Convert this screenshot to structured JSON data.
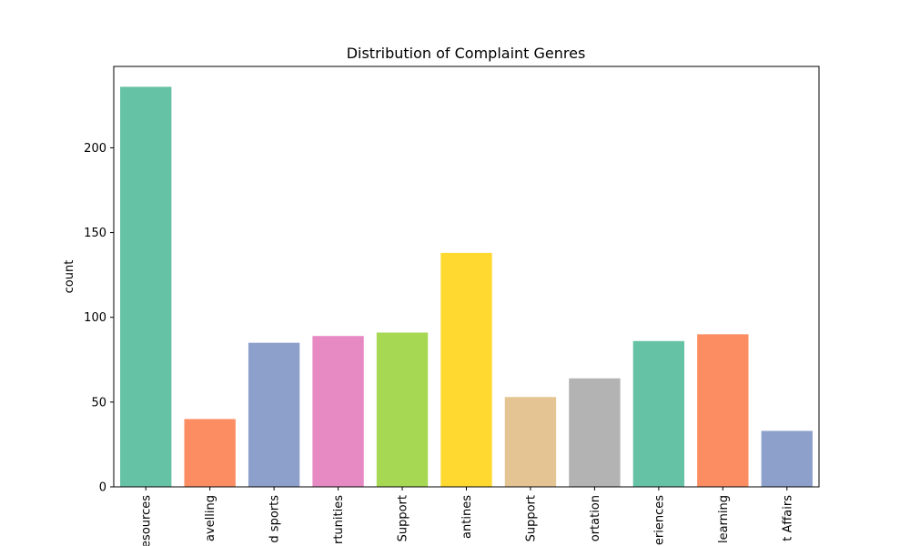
{
  "chart_data": {
    "type": "bar",
    "title": "Distribution of Complaint Genres",
    "xlabel": "",
    "ylabel": "count",
    "ylim": [
      0,
      248
    ],
    "yticks": [
      0,
      50,
      100,
      150,
      200
    ],
    "categories": [
      "esources",
      "avelling",
      "d sports",
      "rtunities",
      "Support",
      "antines",
      "Support",
      "ortation",
      "eriences",
      "learning",
      "t Affairs"
    ],
    "values": [
      236,
      40,
      85,
      89,
      91,
      138,
      53,
      64,
      86,
      90,
      33
    ],
    "colors": [
      "#66c2a5",
      "#fc8d62",
      "#8da0cb",
      "#e78ac3",
      "#a6d854",
      "#ffd92f",
      "#e5c494",
      "#b3b3b3",
      "#66c2a5",
      "#fc8d62",
      "#8da0cb"
    ],
    "grid": false,
    "legend": "none"
  }
}
